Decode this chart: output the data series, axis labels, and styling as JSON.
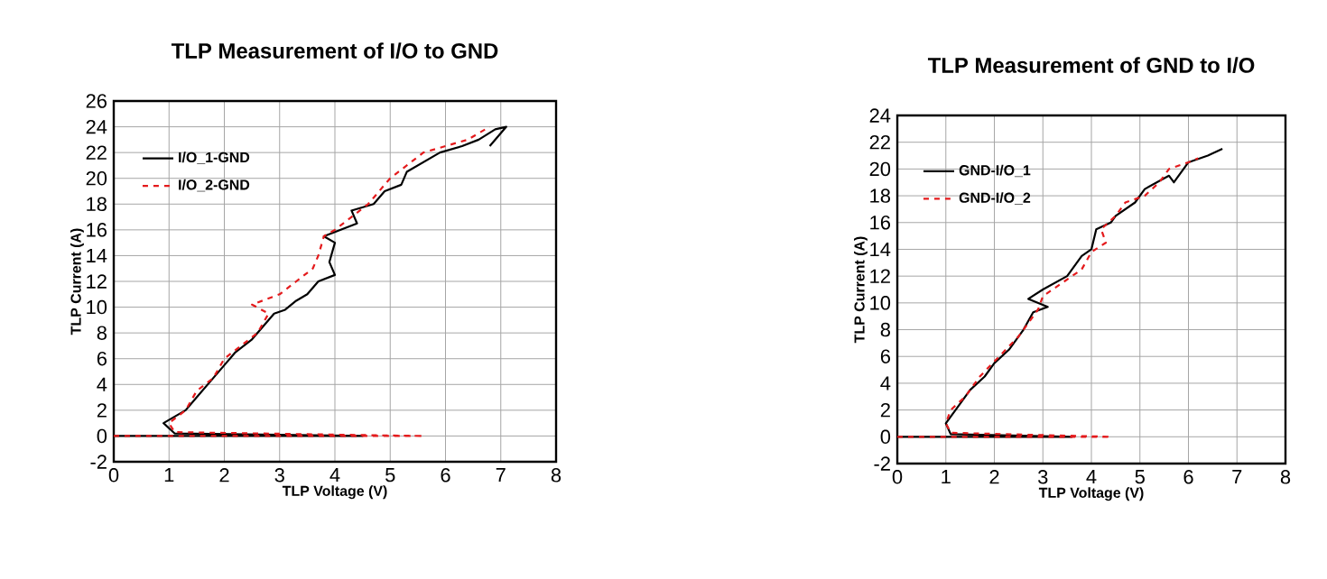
{
  "chart_data": [
    {
      "type": "line",
      "title": "TLP Measurement of I/O to GND",
      "xlabel": "TLP Voltage (V)",
      "ylabel": "TLP Current (A)",
      "xlim": [
        0,
        8
      ],
      "ylim": [
        -2,
        26
      ],
      "xticks": [
        0,
        1,
        2,
        3,
        4,
        5,
        6,
        7,
        8
      ],
      "yticks": [
        -2,
        0,
        2,
        4,
        6,
        8,
        10,
        12,
        14,
        16,
        18,
        20,
        22,
        24,
        26
      ],
      "grid": true,
      "legend": "top left",
      "series": [
        {
          "name": "I/O_1-GND",
          "color": "#000000",
          "line_style": "solid",
          "x": [
            0,
            4.5,
            1.1,
            0.9,
            1.3,
            1.5,
            1.8,
            2.0,
            2.2,
            2.5,
            2.7,
            2.9,
            3.1,
            3.3,
            3.5,
            3.7,
            4.0,
            3.9,
            4.0,
            3.8,
            4.1,
            4.4,
            4.3,
            4.7,
            4.9,
            5.2,
            5.3,
            5.5,
            5.9,
            6.3,
            6.6,
            6.9,
            7.1,
            6.8
          ],
          "values": [
            0,
            0,
            0.2,
            1,
            2,
            3,
            4.5,
            5.5,
            6.5,
            7.5,
            8.5,
            9.5,
            9.8,
            10.5,
            11,
            12,
            12.5,
            13.5,
            15,
            15.5,
            16,
            16.5,
            17.5,
            18,
            19,
            19.5,
            20.5,
            21,
            22,
            22.5,
            23,
            23.8,
            24,
            22.5
          ]
        },
        {
          "name": "I/O_2-GND",
          "color": "#e41a1c",
          "line_style": "dashed",
          "x": [
            0,
            5.6,
            1.1,
            1.0,
            1.3,
            1.5,
            1.8,
            2.0,
            2.3,
            2.6,
            2.8,
            2.5,
            3.0,
            3.3,
            3.6,
            3.7,
            3.8,
            4.0,
            4.3,
            4.6,
            4.8,
            5.0,
            5.3,
            5.6,
            6.0,
            6.4,
            6.8
          ],
          "values": [
            0,
            0,
            0.3,
            1,
            2,
            3.5,
            4.5,
            6,
            7,
            8,
            9.5,
            10.2,
            11,
            12,
            13,
            14,
            15.5,
            16,
            17,
            18,
            19,
            20,
            21,
            22,
            22.5,
            23,
            24
          ]
        }
      ]
    },
    {
      "type": "line",
      "title": "TLP Measurement of GND to I/O",
      "xlabel": "TLP Voltage (V)",
      "ylabel": "TLP Current (A)",
      "xlim": [
        0,
        8
      ],
      "ylim": [
        -2,
        24
      ],
      "xticks": [
        0,
        1,
        2,
        3,
        4,
        5,
        6,
        7,
        8
      ],
      "yticks": [
        -2,
        0,
        2,
        4,
        6,
        8,
        10,
        12,
        14,
        16,
        18,
        20,
        22,
        24
      ],
      "grid": true,
      "legend": "top left",
      "series": [
        {
          "name": "GND-I/O_1",
          "color": "#000000",
          "line_style": "solid",
          "x": [
            0,
            3.6,
            1.1,
            1.0,
            1.2,
            1.5,
            1.8,
            2.0,
            2.3,
            2.6,
            2.8,
            3.1,
            2.7,
            3.0,
            3.5,
            3.8,
            4.0,
            4.1,
            4.4,
            4.5,
            4.9,
            5.1,
            5.6,
            5.7,
            6.0,
            6.4,
            6.7
          ],
          "values": [
            0,
            0,
            0.2,
            1,
            2,
            3.5,
            4.5,
            5.5,
            6.5,
            8,
            9.3,
            9.7,
            10.3,
            11,
            12,
            13.5,
            14,
            15.5,
            16,
            16.5,
            17.5,
            18.5,
            19.5,
            19,
            20.5,
            21,
            21.5
          ]
        },
        {
          "name": "GND-I/O_2",
          "color": "#e41a1c",
          "line_style": "dashed",
          "x": [
            0,
            4.4,
            1.1,
            1.0,
            1.1,
            1.4,
            1.7,
            2.1,
            2.5,
            2.9,
            3.0,
            3.4,
            3.8,
            4.0,
            4.3,
            4.2,
            4.5,
            4.7,
            5.1,
            5.4,
            5.6,
            6.0,
            6.2
          ],
          "values": [
            0,
            0,
            0.3,
            1,
            2,
            3,
            4.5,
            6,
            7.5,
            9.5,
            10.5,
            11.5,
            12.5,
            13.8,
            14.5,
            15.5,
            16.5,
            17.5,
            18,
            19,
            20,
            20.5,
            20.8
          ]
        }
      ]
    }
  ]
}
